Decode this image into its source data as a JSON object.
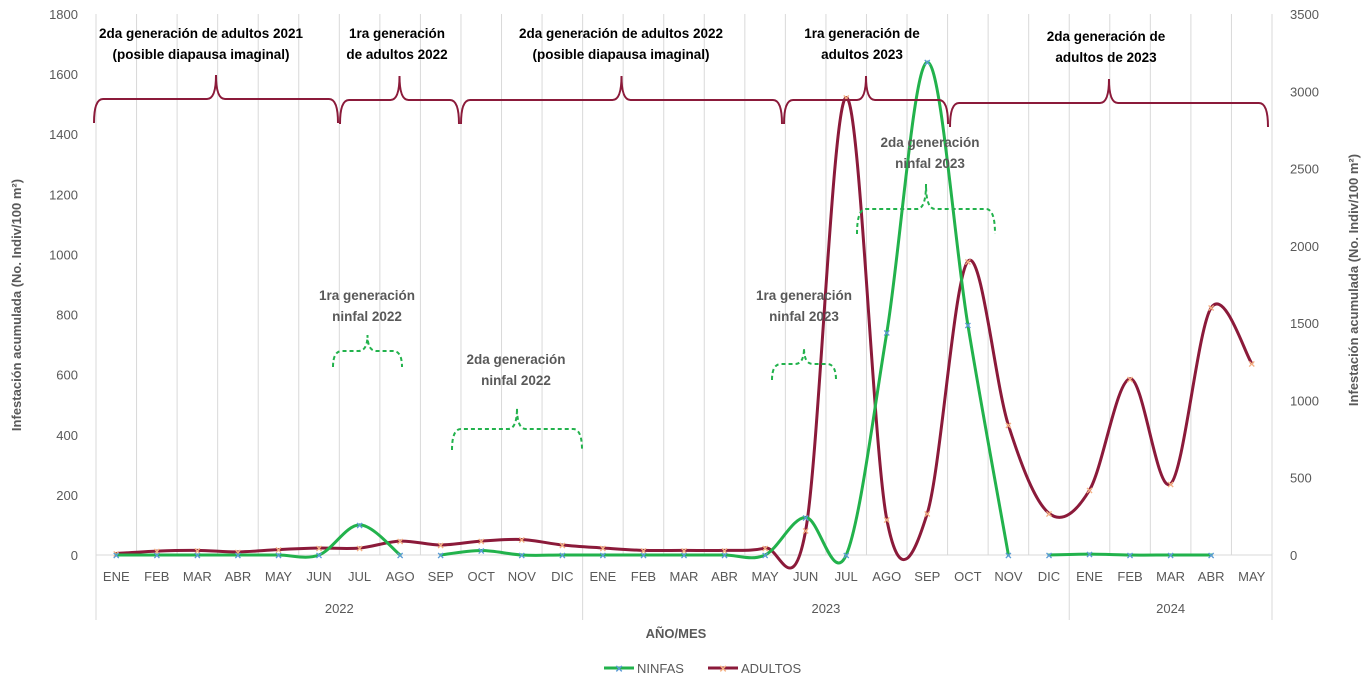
{
  "chart_data": {
    "type": "line",
    "categories": [
      "ENE",
      "FEB",
      "MAR",
      "ABR",
      "MAY",
      "JUN",
      "JUL",
      "AGO",
      "SEP",
      "OCT",
      "NOV",
      "DIC",
      "ENE",
      "FEB",
      "MAR",
      "ABR",
      "MAY",
      "JUN",
      "JUL",
      "AGO",
      "SEP",
      "OCT",
      "NOV",
      "DIC",
      "ENE",
      "FEB",
      "MAR",
      "ABR",
      "MAY"
    ],
    "years": [
      {
        "label": "2022",
        "from": 0,
        "to": 11
      },
      {
        "label": "2023",
        "from": 12,
        "to": 23
      },
      {
        "label": "2024",
        "from": 24,
        "to": 28
      }
    ],
    "xlabel": "AÑO/MES",
    "ylabel_left": "Infestación acumulada (No. Indiv/100 m²)",
    "ylabel_right": "Infestación acumulada (No. Indiv/100 m²)",
    "ylim_left": [
      0,
      1800
    ],
    "ylim_right": [
      0,
      3500
    ],
    "yticks_left": [
      "0",
      "200",
      "400",
      "600",
      "800",
      "1000",
      "1200",
      "1400",
      "1600",
      "1800"
    ],
    "yticks_right": [
      "0",
      "500",
      "1000",
      "1500",
      "2000",
      "2500",
      "3000",
      "3500"
    ],
    "grid": "vertical",
    "legend_position": "bottom",
    "series": [
      {
        "name": "NINFAS",
        "axis": "left",
        "color": "#22B24C",
        "marker_color": "#5B9BD5",
        "segments": [
          {
            "start": 0,
            "values": [
              0,
              0,
              0,
              0,
              0,
              0,
              100,
              0
            ]
          },
          {
            "start": 8,
            "values": [
              0,
              15,
              0,
              0,
              0,
              0,
              0,
              0,
              0,
              125,
              0,
              740,
              1640,
              765,
              0
            ]
          },
          {
            "start": 23,
            "values": [
              0,
              3,
              0,
              0,
              0
            ]
          }
        ]
      },
      {
        "name": "ADULTOS",
        "axis": "right",
        "color": "#8B1A3A",
        "marker_color": "#F4B183",
        "segments": [
          {
            "start": 0,
            "values": [
              10,
              25,
              30,
              20,
              35,
              45,
              45,
              90,
              65,
              90,
              100,
              65,
              45,
              30,
              30,
              30,
              45,
              160,
              2960,
              230,
              270,
              1900,
              840,
              270,
              420,
              1140,
              460,
              1600,
              1240
            ]
          }
        ]
      }
    ],
    "annotations": {
      "adult_generations": [
        {
          "line1": "2da generación de adultos 2021",
          "line2": "(posible diapausa imaginal)"
        },
        {
          "line1": "1ra generación",
          "line2": "de adultos 2022"
        },
        {
          "line1": "2da generación de adultos 2022",
          "line2": "(posible diapausa imaginal)"
        },
        {
          "line1": "1ra generación de",
          "line2": "adultos 2023"
        },
        {
          "line1": "2da generación de",
          "line2": "adultos de 2023"
        }
      ],
      "nymph_generations": [
        {
          "line1": "1ra generación",
          "line2": "ninfal 2022"
        },
        {
          "line1": "2da generación",
          "line2": "ninfal 2022"
        },
        {
          "line1": "1ra generación",
          "line2": "ninfal 2023"
        },
        {
          "line1": "2da generación",
          "line2": "ninfal 2023"
        }
      ]
    }
  }
}
